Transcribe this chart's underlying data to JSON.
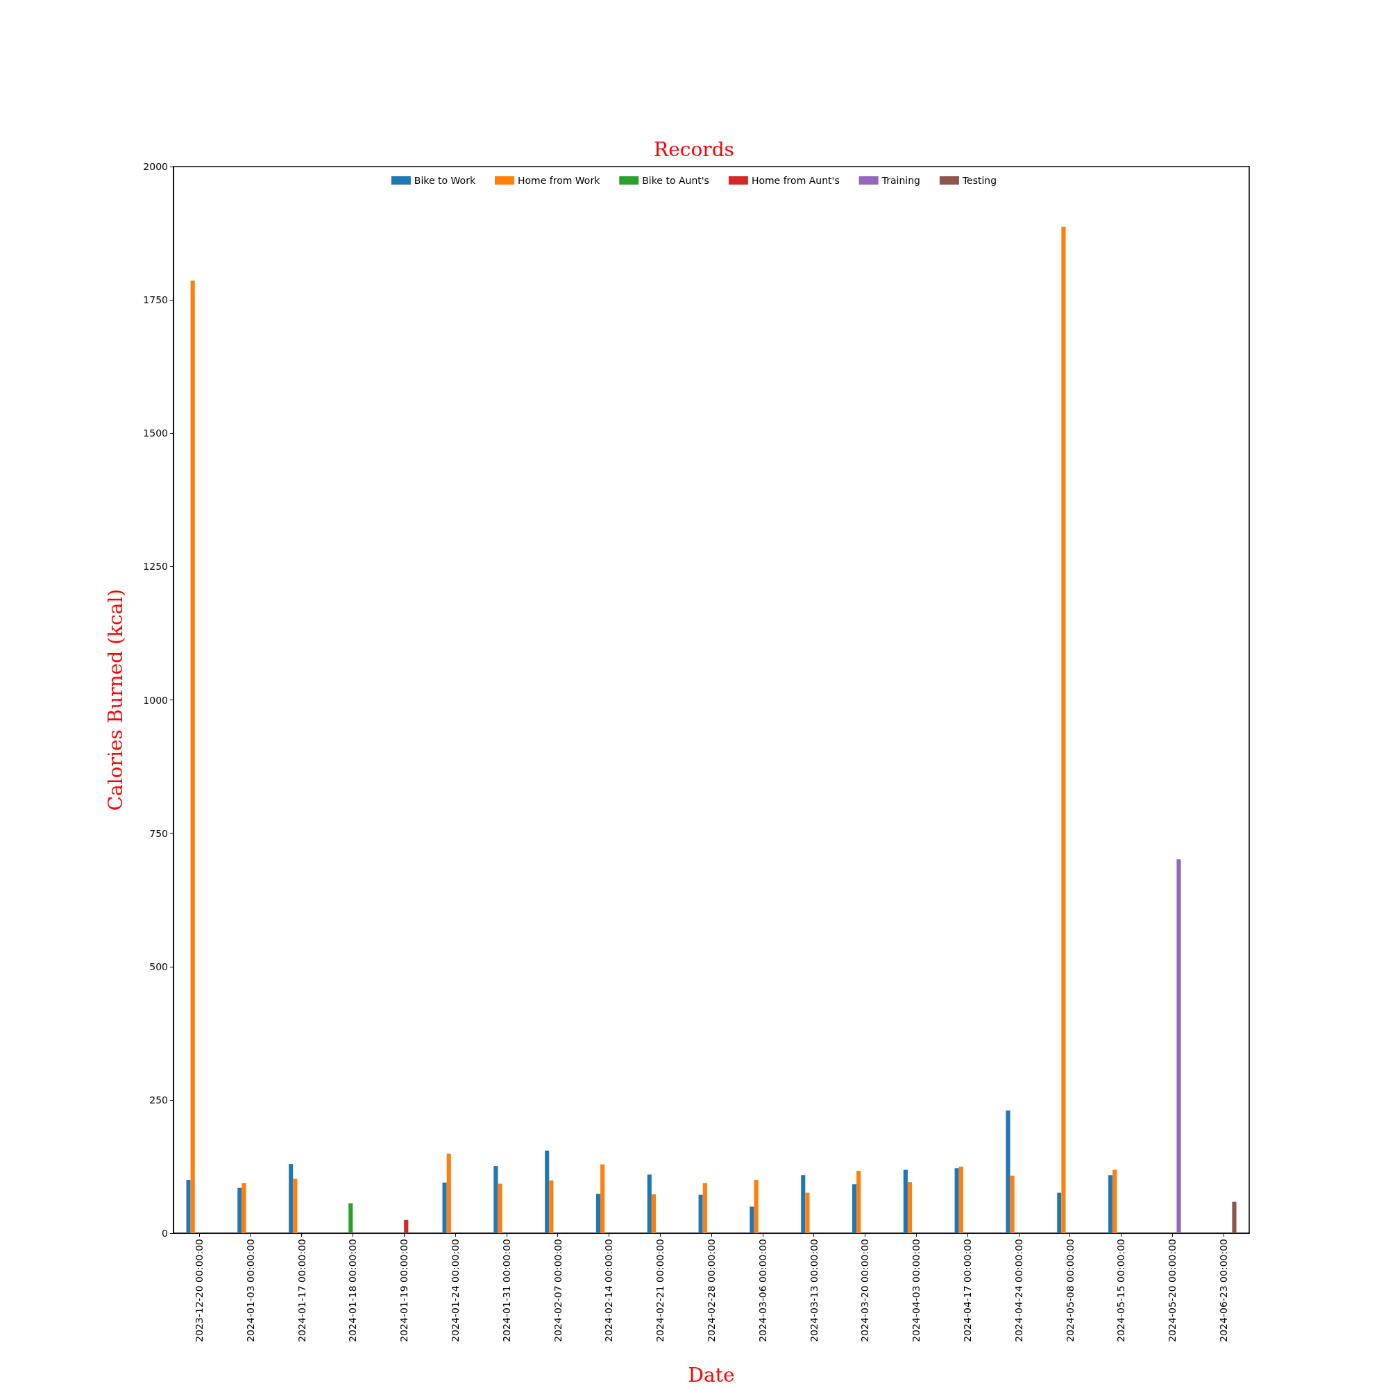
{
  "chart_data": {
    "type": "bar",
    "title": "Records",
    "xlabel": "Date",
    "ylabel": "Calories Burned (kcal)",
    "categories": [
      "2023-12-20 00:00:00",
      "2024-01-03 00:00:00",
      "2024-01-17 00:00:00",
      "2024-01-18 00:00:00",
      "2024-01-19 00:00:00",
      "2024-01-24 00:00:00",
      "2024-01-31 00:00:00",
      "2024-02-07 00:00:00",
      "2024-02-14 00:00:00",
      "2024-02-21 00:00:00",
      "2024-02-28 00:00:00",
      "2024-03-06 00:00:00",
      "2024-03-13 00:00:00",
      "2024-03-20 00:00:00",
      "2024-04-03 00:00:00",
      "2024-04-17 00:00:00",
      "2024-04-24 00:00:00",
      "2024-05-08 00:00:00",
      "2024-05-15 00:00:00",
      "2024-05-20 00:00:00",
      "2024-06-23 00:00:00"
    ],
    "series": [
      {
        "name": "Bike to Work",
        "color": "#1f77b4",
        "values": [
          100,
          85,
          130,
          null,
          null,
          95,
          126,
          155,
          74,
          110,
          72,
          50,
          109,
          92,
          119,
          122,
          230,
          76,
          109,
          null,
          null
        ]
      },
      {
        "name": "Home from Work",
        "color": "#ff7f0e",
        "values": [
          1786,
          94,
          102,
          null,
          null,
          149,
          93,
          99,
          129,
          73,
          94,
          100,
          76,
          117,
          96,
          125,
          108,
          1887,
          119,
          null,
          null
        ]
      },
      {
        "name": "Bike to Aunt's",
        "color": "#2ca02c",
        "values": [
          null,
          null,
          null,
          56,
          null,
          null,
          null,
          null,
          null,
          null,
          null,
          null,
          null,
          null,
          null,
          null,
          null,
          null,
          null,
          null,
          null
        ]
      },
      {
        "name": "Home from Aunt's",
        "color": "#d62728",
        "values": [
          null,
          null,
          null,
          null,
          25,
          null,
          null,
          null,
          null,
          null,
          null,
          null,
          null,
          null,
          null,
          null,
          null,
          null,
          null,
          null,
          null
        ]
      },
      {
        "name": "Training",
        "color": "#9467bd",
        "values": [
          null,
          null,
          null,
          null,
          null,
          null,
          null,
          null,
          null,
          null,
          null,
          null,
          null,
          null,
          null,
          null,
          null,
          null,
          null,
          701,
          null
        ]
      },
      {
        "name": "Testing",
        "color": "#8c564b",
        "values": [
          null,
          null,
          null,
          null,
          null,
          null,
          null,
          null,
          null,
          null,
          null,
          null,
          null,
          null,
          null,
          null,
          null,
          null,
          null,
          null,
          59
        ]
      }
    ],
    "ylim": [
      0,
      2000
    ],
    "yticks": [
      0,
      250,
      500,
      750,
      1000,
      1250,
      1500,
      1750,
      2000
    ],
    "grid": false,
    "legend": "top"
  }
}
